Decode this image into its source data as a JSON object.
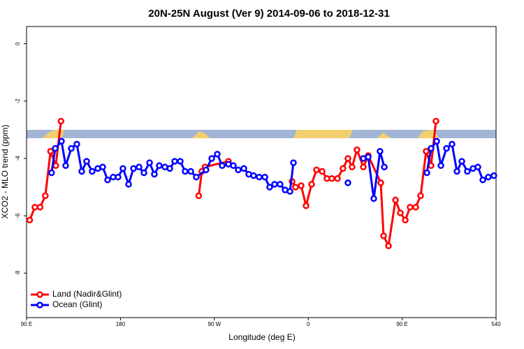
{
  "chart_data": {
    "type": "line",
    "title": "20N-25N August (Ver 9)   2014-09-06 to 2018-12-31",
    "xlabel": "Longitude (deg E)",
    "ylabel": "XCO2 - MLO trend (ppm)",
    "xlim": [
      90,
      540
    ],
    "xticks": [
      {
        "value": 90,
        "label": "90 E"
      },
      180,
      {
        "value": 270,
        "label": "90 W"
      },
      {
        "value": 360,
        "label": "0"
      },
      {
        "value": 450,
        "label": "90 E"
      },
      540
    ],
    "xtick_labels_extra": null,
    "ylim": [
      -9.55,
      0.6
    ],
    "yticks": [
      0,
      -2,
      -4,
      -6,
      -8
    ],
    "legend": "bottom-left",
    "series": [
      {
        "name": "Land (Nadir&Glint)",
        "color": "#ff0000",
        "x": [
          93,
          98,
          103,
          108,
          113,
          118,
          123,
          190,
          255,
          258,
          261,
          283.5,
          320,
          344.5,
          347.8,
          353.2,
          357.9,
          363.2,
          367.9,
          373.3,
          377.9,
          382.6,
          388,
          393.3,
          398,
          402,
          406.7,
          412.8,
          417.5,
          429.5,
          432.2,
          436.9,
          443.6,
          448.3,
          453,
          457.6,
          463,
          467.7,
          473,
          477.7,
          482.4
        ],
        "values": [
          -6.15,
          -5.7,
          -5.7,
          -5.3,
          -3.75,
          -4.25,
          -2.7,
          null,
          -5.3,
          -4.45,
          -4.3,
          -4.1,
          null,
          -4.8,
          -5.0,
          -4.95,
          -5.65,
          -4.9,
          -4.4,
          -4.45,
          -4.7,
          -4.7,
          -4.7,
          -4.35,
          -4.0,
          -4.3,
          -3.7,
          -4.3,
          -3.9,
          -4.85,
          -6.7,
          -7.05,
          -5.45,
          -5.9,
          -6.15,
          -5.7,
          -5.7,
          -5.3,
          -3.75,
          -4.25,
          -2.7
        ]
      },
      {
        "name": "Ocean (Glint)",
        "color": "#0000ff",
        "x": [
          114,
          117.5,
          123.5,
          127.5,
          132.9,
          138.2,
          142.9,
          147.6,
          152.9,
          158.3,
          163,
          167.7,
          173,
          177.7,
          182.4,
          187.8,
          192.5,
          197.8,
          202.5,
          207.9,
          212.5,
          217.2,
          222.6,
          227.3,
          232,
          237.3,
          242,
          247.4,
          252.7,
          262,
          267.5,
          272.8,
          277.5,
          283.5,
          288.2,
          292.9,
          298.3,
          303,
          307.6,
          313,
          318.4,
          323,
          327.7,
          333,
          337.8,
          342.5,
          345.8,
          370,
          398,
          405,
          412.8,
          417.5,
          422.8,
          428.8,
          432.9,
          450,
          473.7,
          477.7,
          483.1,
          487.1,
          492.5,
          497.8,
          502.5,
          507.2,
          512.5,
          517.9,
          522.6,
          527.3,
          532.6,
          537.9
        ],
        "values": [
          -4.5,
          -3.65,
          -3.4,
          -4.25,
          -3.65,
          -3.5,
          -4.45,
          -4.1,
          -4.45,
          -4.35,
          -4.3,
          -4.75,
          -4.65,
          -4.65,
          -4.35,
          -4.9,
          -4.35,
          -4.3,
          -4.5,
          -4.15,
          -4.55,
          -4.25,
          -4.3,
          -4.35,
          -4.1,
          -4.1,
          -4.45,
          -4.45,
          -4.65,
          -4.4,
          -4.0,
          -3.85,
          -4.25,
          -4.2,
          -4.25,
          -4.4,
          -4.35,
          -4.55,
          -4.6,
          -4.65,
          -4.65,
          -5.0,
          -4.9,
          -4.9,
          -5.1,
          -5.15,
          -4.15,
          null,
          -4.85,
          null,
          -4.0,
          -3.95,
          -5.4,
          -3.75,
          -4.3,
          null,
          -4.5,
          -3.65,
          -3.4,
          -4.25,
          -3.65,
          -3.5,
          -4.45,
          -4.1,
          -4.45,
          -4.35,
          -4.3,
          -4.75,
          -4.65,
          -4.6
        ]
      }
    ]
  }
}
